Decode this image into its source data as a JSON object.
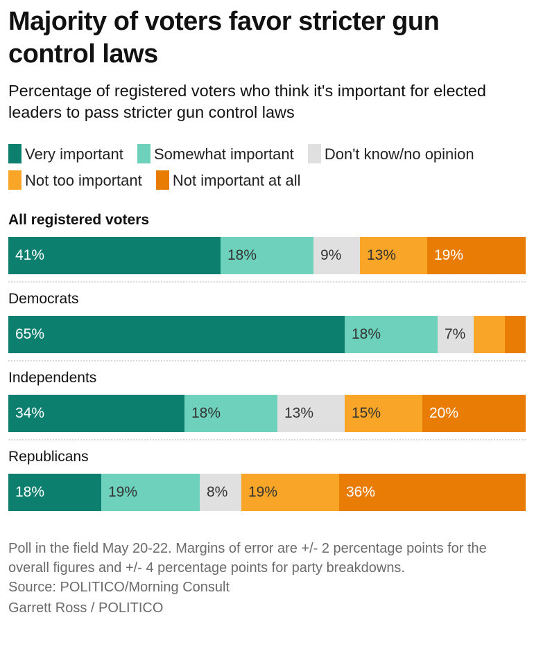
{
  "chart_data": {
    "type": "bar",
    "orientation": "horizontal",
    "stacked": true,
    "title": "Majority of voters favor stricter gun control laws",
    "subtitle": "Percentage of registered voters who think it's important for elected leaders to pass stricter gun control laws",
    "xlabel": "",
    "ylabel": "",
    "xlim": [
      0,
      100
    ],
    "legend_position": "top",
    "categories": [
      "All registered voters",
      "Democrats",
      "Independents",
      "Republicans"
    ],
    "series": [
      {
        "name": "Very important",
        "color": "#0c7f6f",
        "text_color": "#ffffff",
        "values": [
          41,
          65,
          34,
          18
        ],
        "labels": [
          "41%",
          "65%",
          "34%",
          "18%"
        ]
      },
      {
        "name": "Somewhat important",
        "color": "#6dd1bb",
        "text_color": "#333333",
        "values": [
          18,
          18,
          18,
          19
        ],
        "labels": [
          "18%",
          "18%",
          "18%",
          "19%"
        ]
      },
      {
        "name": "Don't know/no opinion",
        "color": "#e0e0e0",
        "text_color": "#333333",
        "values": [
          9,
          7,
          13,
          8
        ],
        "labels": [
          "9%",
          "7%",
          "13%",
          "8%"
        ]
      },
      {
        "name": "Not too important",
        "color": "#f9a628",
        "text_color": "#333333",
        "values": [
          13,
          6,
          15,
          19
        ],
        "labels": [
          "13%",
          "",
          "15%",
          "19%"
        ]
      },
      {
        "name": "Not important at all",
        "color": "#e97c04",
        "text_color": "#ffffff",
        "values": [
          19,
          4,
          20,
          36
        ],
        "labels": [
          "19%",
          "",
          "20%",
          "36%"
        ]
      }
    ],
    "notes": "Poll in the field May 20-22. Margins of error are +/- 2 percentage points for the overall figures and +/- 4 percentage points for party breakdowns.",
    "source": "Source: POLITICO/Morning Consult",
    "credit": "Garrett Ross / POLITICO"
  }
}
